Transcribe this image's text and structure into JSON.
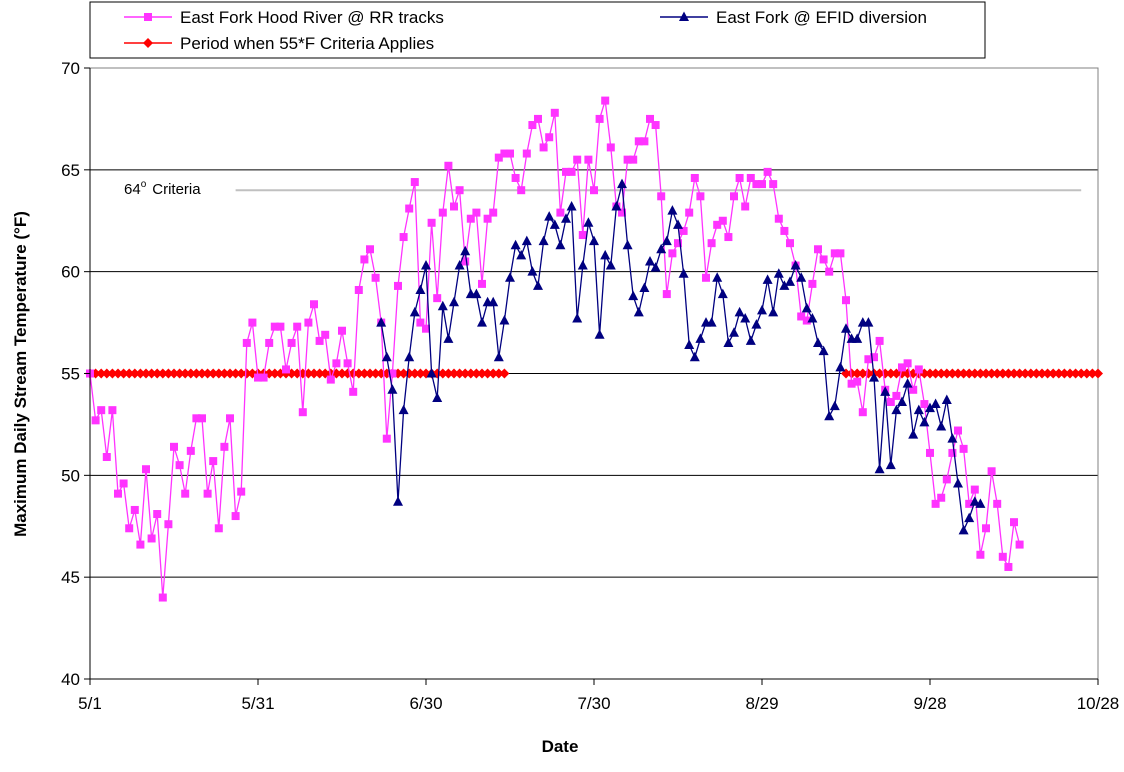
{
  "chart_data": {
    "type": "line",
    "title": "",
    "xlabel": "Date",
    "ylabel": "Maximum Daily Stream Temperature (°F)",
    "ylim": [
      40,
      70
    ],
    "yticks": [
      40,
      45,
      50,
      55,
      60,
      65,
      70
    ],
    "xlim_day_offsets": [
      0,
      180
    ],
    "xticks": [
      {
        "label": "5/1",
        "day": 0
      },
      {
        "label": "5/31",
        "day": 30
      },
      {
        "label": "6/30",
        "day": 60
      },
      {
        "label": "7/30",
        "day": 90
      },
      {
        "label": "8/29",
        "day": 120
      },
      {
        "label": "9/28",
        "day": 150
      },
      {
        "label": "10/28",
        "day": 180
      }
    ],
    "grid": {
      "horizontal": true,
      "vertical": false
    },
    "legend_placement": "top",
    "annotation": {
      "text": "64° Criteria",
      "prefix": "64",
      "degree": "o",
      "suffix": "Criteria",
      "y": 64,
      "x_start_day": 26,
      "x_end_day": 177,
      "color": "#c0c0c0"
    },
    "series": [
      {
        "name": "East Fork Hood River @ RR tracks",
        "color": "#ff33ff",
        "marker": "square",
        "start_day": 0,
        "values": [
          55.0,
          52.7,
          53.2,
          50.9,
          53.2,
          49.1,
          49.6,
          47.4,
          48.3,
          46.6,
          50.3,
          46.9,
          48.1,
          44.0,
          47.6,
          51.4,
          50.5,
          49.1,
          51.2,
          52.8,
          52.8,
          49.1,
          50.7,
          47.4,
          51.4,
          52.8,
          48.0,
          49.2,
          56.5,
          57.5,
          54.8,
          54.8,
          56.5,
          57.3,
          57.3,
          55.2,
          56.5,
          57.3,
          53.1,
          57.5,
          58.4,
          56.6,
          56.9,
          54.7,
          55.5,
          57.1,
          55.5,
          54.1,
          59.1,
          60.6,
          61.1,
          59.7,
          57.5,
          51.8,
          55.0,
          59.3,
          61.7,
          63.1,
          64.4,
          57.5,
          57.2,
          62.4,
          58.7,
          62.9,
          65.2,
          63.2,
          64.0,
          60.5,
          62.6,
          62.9,
          59.4,
          62.6,
          62.9,
          65.6,
          65.8,
          65.8,
          64.6,
          64.0,
          65.8,
          67.2,
          67.5,
          66.1,
          66.6,
          67.8,
          62.9,
          64.9,
          64.9,
          65.5,
          61.8,
          65.5,
          64.0,
          67.5,
          68.4,
          66.1,
          63.2,
          62.9,
          65.5,
          65.5,
          66.4,
          66.4,
          67.5,
          67.2,
          63.7,
          58.9,
          60.9,
          61.4,
          62.0,
          62.9,
          64.6,
          63.7,
          59.7,
          61.4,
          62.3,
          62.5,
          61.7,
          63.7,
          64.6,
          63.2,
          64.6,
          64.3,
          64.3,
          64.9,
          64.3,
          62.6,
          62.0,
          61.4,
          60.3,
          57.8,
          57.6,
          59.4,
          61.1,
          60.6,
          60.0,
          60.9,
          60.9,
          58.6,
          54.5,
          54.6,
          53.1,
          55.7,
          55.8,
          56.6,
          54.2,
          53.6,
          53.9,
          55.3,
          55.5,
          54.2,
          55.2,
          53.5,
          51.1,
          48.6,
          48.9,
          49.8,
          51.1,
          52.2,
          51.3,
          48.6,
          49.3,
          46.1,
          47.4,
          50.2,
          48.6,
          46.0,
          45.5,
          47.7,
          46.6
        ]
      },
      {
        "name": "East Fork @ EFID diversion",
        "color": "#000080",
        "marker": "triangle",
        "start_day": 52,
        "values": [
          57.5,
          55.8,
          54.2,
          48.7,
          53.2,
          55.8,
          58.0,
          59.1,
          60.3,
          55.0,
          53.8,
          58.3,
          56.7,
          58.5,
          60.3,
          61.0,
          58.9,
          58.9,
          57.5,
          58.5,
          58.5,
          55.8,
          57.6,
          59.7,
          61.3,
          60.8,
          61.5,
          60.0,
          59.3,
          61.5,
          62.7,
          62.3,
          61.3,
          62.6,
          63.2,
          57.7,
          60.3,
          62.4,
          61.5,
          56.9,
          60.8,
          60.3,
          63.2,
          64.3,
          61.3,
          58.8,
          58.0,
          59.2,
          60.5,
          60.2,
          61.1,
          61.5,
          63.0,
          62.3,
          59.9,
          56.4,
          55.8,
          56.7,
          57.5,
          57.5,
          59.7,
          58.9,
          56.5,
          57.0,
          58.0,
          57.7,
          56.6,
          57.4,
          58.1,
          59.6,
          58.0,
          59.9,
          59.3,
          59.5,
          60.3,
          59.7,
          58.2,
          57.7,
          56.5,
          56.1,
          52.9,
          53.4,
          55.3,
          57.2,
          56.7,
          56.7,
          57.5,
          57.5,
          54.8,
          50.3,
          54.1,
          50.5,
          53.2,
          53.6,
          54.5,
          52.0,
          53.2,
          52.6,
          53.3,
          53.5,
          52.4,
          53.7,
          51.8,
          49.6,
          47.3,
          47.9,
          48.7,
          48.6
        ]
      },
      {
        "name": "Period when 55*F Criteria Applies",
        "color": "#ff0000",
        "marker": "diamond",
        "segments": [
          {
            "start_day": 0,
            "end_day": 74,
            "value": 55
          },
          {
            "start_day": 135,
            "end_day": 180,
            "value": 55
          }
        ]
      }
    ]
  }
}
